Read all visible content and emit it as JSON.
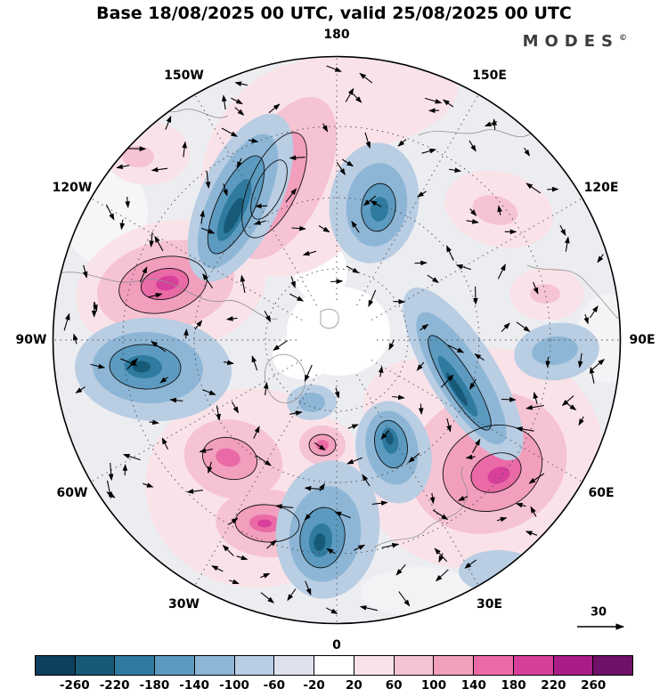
{
  "header": {
    "title": "Base 18/08/2025 00 UTC, valid 25/08/2025 00 UTC",
    "logo_text": "MODES",
    "logo_mark": "©"
  },
  "map": {
    "longitude_labels": [
      {
        "text": "180",
        "angle": 0
      },
      {
        "text": "150E",
        "angle": 30
      },
      {
        "text": "120E",
        "angle": 60
      },
      {
        "text": "90E",
        "angle": 90
      },
      {
        "text": "60E",
        "angle": 120
      },
      {
        "text": "30E",
        "angle": 150
      },
      {
        "text": "0",
        "angle": 180
      },
      {
        "text": "30W",
        "angle": 210
      },
      {
        "text": "60W",
        "angle": 240
      },
      {
        "text": "90W",
        "angle": 270
      },
      {
        "text": "120W",
        "angle": 300
      },
      {
        "text": "150W",
        "angle": 330
      }
    ],
    "reference_vector_label": "30"
  },
  "colorbar": {
    "ticks": [
      "-260",
      "-220",
      "-180",
      "-140",
      "-100",
      "-60",
      "-20",
      "20",
      "60",
      "100",
      "140",
      "180",
      "220",
      "260"
    ],
    "colors": [
      "#0e3f5c",
      "#175a78",
      "#2f7ba0",
      "#5c9ac0",
      "#8db6d6",
      "#b9cde3",
      "#dfe2ee",
      "#ffffff",
      "#f9e3e9",
      "#f6c3d3",
      "#f29ebd",
      "#ea6aa6",
      "#d83f9b",
      "#aa1c86",
      "#6f1168"
    ]
  },
  "chart_data": {
    "type": "heatmap",
    "title": "Base 18/08/2025 00 UTC, valid 25/08/2025 00 UTC",
    "projection": "north-polar-stereographic",
    "field": "shaded anomaly field with overlaid wind vectors and black contours",
    "colorbar_levels": [
      -260,
      -220,
      -180,
      -140,
      -100,
      -60,
      -20,
      20,
      60,
      100,
      140,
      180,
      220,
      260
    ],
    "colorbar_colors": [
      "#0e3f5c",
      "#175a78",
      "#2f7ba0",
      "#5c9ac0",
      "#8db6d6",
      "#b9cde3",
      "#dfe2ee",
      "#ffffff",
      "#f9e3e9",
      "#f6c3d3",
      "#f29ebd",
      "#ea6aa6",
      "#d83f9b",
      "#aa1c86",
      "#6f1168"
    ],
    "vector_reference_magnitude": 30,
    "longitude_ring_labels": [
      "180",
      "150E",
      "120E",
      "90E",
      "60E",
      "30E",
      "0",
      "30W",
      "60W",
      "90W",
      "120W",
      "150W"
    ],
    "source_logo": "MODES©"
  }
}
